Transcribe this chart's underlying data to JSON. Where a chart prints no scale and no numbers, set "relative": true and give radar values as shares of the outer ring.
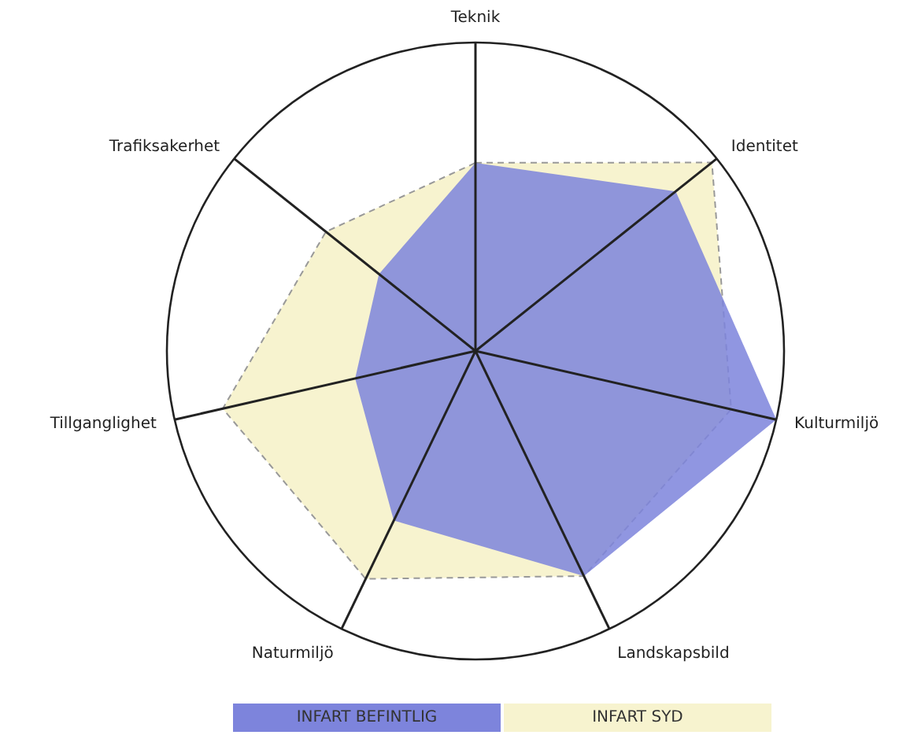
{
  "chart_data": {
    "type": "radar",
    "relative": true,
    "categories": [
      "Teknik",
      "Identitet",
      "Kulturmiljö",
      "Landskapsbild",
      "Naturmiljö",
      "Tillganglighet",
      "Trafiksakerhet"
    ],
    "series": [
      {
        "name": "INFART SYD",
        "color": "#f7f3cf",
        "values": [
          0.61,
          0.98,
          0.85,
          0.81,
          0.82,
          0.84,
          0.62
        ]
      },
      {
        "name": "INFART BEFINTLIG",
        "color": "#7d84dc",
        "values": [
          0.61,
          0.83,
          1.0,
          0.81,
          0.61,
          0.4,
          0.4
        ]
      }
    ],
    "legend": "bottom"
  }
}
